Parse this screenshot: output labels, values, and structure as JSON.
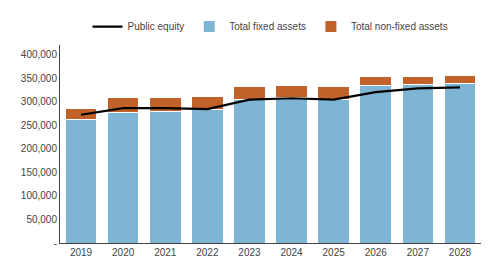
{
  "chart_data": {
    "type": "bar",
    "stacked": true,
    "categories": [
      "2019",
      "2020",
      "2021",
      "2022",
      "2023",
      "2024",
      "2025",
      "2026",
      "2027",
      "2028"
    ],
    "series": [
      {
        "name": "Total fixed assets",
        "color": "#7EB4D4",
        "values": [
          263000,
          277000,
          280000,
          283000,
          305000,
          308000,
          305000,
          334000,
          336000,
          338000
        ]
      },
      {
        "name": "Total non-fixed assets",
        "color": "#C0622A",
        "values": [
          22000,
          31000,
          29000,
          27000,
          27000,
          26000,
          26000,
          19000,
          18000,
          17000
        ]
      },
      {
        "name": "Public equity",
        "type": "line",
        "color": "#000000",
        "values": [
          272000,
          286000,
          286000,
          284000,
          304000,
          307000,
          304000,
          320000,
          328000,
          330000
        ]
      }
    ],
    "ylim": [
      0,
      420000
    ],
    "yticks": [
      {
        "value": 0,
        "label": "-"
      },
      {
        "value": 50000,
        "label": "50,000"
      },
      {
        "value": 100000,
        "label": "100,000"
      },
      {
        "value": 150000,
        "label": "150,000"
      },
      {
        "value": 200000,
        "label": "200,000"
      },
      {
        "value": 250000,
        "label": "250,000"
      },
      {
        "value": 300000,
        "label": "300,000"
      },
      {
        "value": 350000,
        "label": "350,000"
      },
      {
        "value": 400000,
        "label": "400,000"
      }
    ],
    "grid": false,
    "legend": "top"
  }
}
